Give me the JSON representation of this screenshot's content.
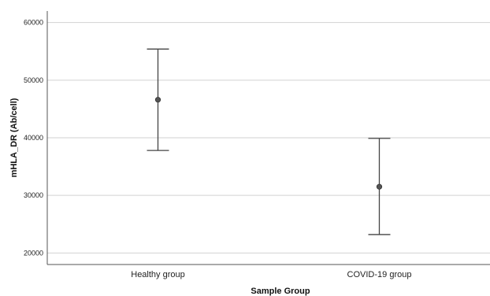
{
  "chart_data": {
    "type": "errorbar",
    "xlabel": "Sample Group",
    "ylabel": "mHLA_DR (Ab/cell)",
    "categories": [
      "Healthy group",
      "COVID-19 group"
    ],
    "points": [
      {
        "category": "Healthy group",
        "mean": 46600,
        "lower": 37800,
        "upper": 55400
      },
      {
        "category": "COVID-19 group",
        "mean": 31500,
        "lower": 23200,
        "upper": 39900
      }
    ],
    "y_ticks": [
      20000,
      30000,
      40000,
      50000,
      60000
    ],
    "y_tick_labels": [
      "20000",
      "30000",
      "40000",
      "50000",
      "60000"
    ],
    "ylim": [
      18000,
      62000
    ],
    "grid": true,
    "colors": {
      "marker": "#555555",
      "errorbar": "#444444",
      "grid": "#d2d2d2",
      "axis": "#555555"
    }
  }
}
